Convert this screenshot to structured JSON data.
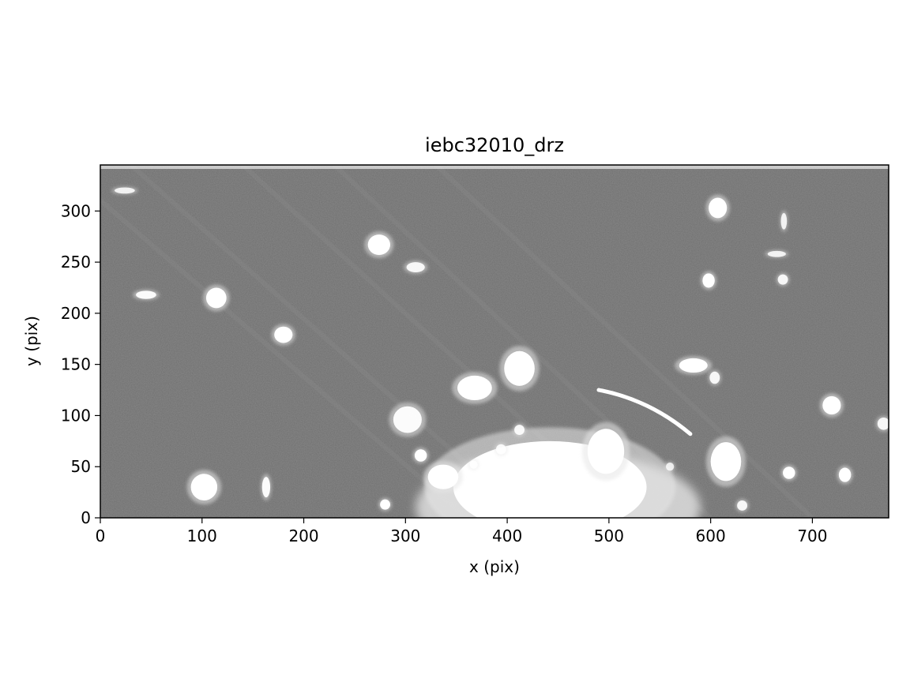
{
  "title": "iebc32010_drz",
  "chart_data": {
    "type": "heatmap",
    "title": "iebc32010_drz",
    "xlabel": "x (pix)",
    "ylabel": "y (pix)",
    "xlim": [
      0,
      775
    ],
    "ylim": [
      0,
      345
    ],
    "xticks": [
      0,
      100,
      200,
      300,
      400,
      500,
      600,
      700
    ],
    "yticks": [
      0,
      50,
      100,
      150,
      200,
      250,
      300
    ],
    "colormap": "gray",
    "grid": false,
    "background_color": "#6e6e6e",
    "sources": [
      {
        "x": 442,
        "y": 30,
        "rx": 95,
        "ry": 45,
        "peak": 1.0
      },
      {
        "x": 497,
        "y": 65,
        "rx": 18,
        "ry": 22,
        "peak": 1.0
      },
      {
        "x": 412,
        "y": 146,
        "rx": 15,
        "ry": 17,
        "peak": 1.0
      },
      {
        "x": 368,
        "y": 127,
        "rx": 17,
        "ry": 12,
        "peak": 1.0
      },
      {
        "x": 337,
        "y": 40,
        "rx": 15,
        "ry": 12,
        "peak": 1.0
      },
      {
        "x": 302,
        "y": 96,
        "rx": 14,
        "ry": 13,
        "peak": 0.95
      },
      {
        "x": 274,
        "y": 267,
        "rx": 11,
        "ry": 10,
        "peak": 1.0
      },
      {
        "x": 114,
        "y": 215,
        "rx": 10,
        "ry": 10,
        "peak": 1.0
      },
      {
        "x": 180,
        "y": 179,
        "rx": 9,
        "ry": 8,
        "peak": 1.0
      },
      {
        "x": 102,
        "y": 30,
        "rx": 13,
        "ry": 13,
        "peak": 1.0
      },
      {
        "x": 607,
        "y": 303,
        "rx": 9,
        "ry": 10,
        "peak": 1.0
      },
      {
        "x": 598,
        "y": 232,
        "rx": 6,
        "ry": 7,
        "peak": 1.0
      },
      {
        "x": 583,
        "y": 149,
        "rx": 14,
        "ry": 7,
        "peak": 1.0
      },
      {
        "x": 615,
        "y": 55,
        "rx": 15,
        "ry": 19,
        "peak": 1.0
      },
      {
        "x": 719,
        "y": 110,
        "rx": 9,
        "ry": 9,
        "peak": 1.0
      },
      {
        "x": 770,
        "y": 92,
        "rx": 6,
        "ry": 6,
        "peak": 0.9
      },
      {
        "x": 732,
        "y": 42,
        "rx": 6,
        "ry": 7,
        "peak": 1.0
      },
      {
        "x": 677,
        "y": 44,
        "rx": 6,
        "ry": 6,
        "peak": 1.0
      },
      {
        "x": 315,
        "y": 61,
        "rx": 6,
        "ry": 6,
        "peak": 1.0
      },
      {
        "x": 280,
        "y": 13,
        "rx": 5,
        "ry": 5,
        "peak": 1.0
      },
      {
        "x": 45,
        "y": 218,
        "rx": 10,
        "ry": 4,
        "peak": 0.95
      },
      {
        "x": 310,
        "y": 245,
        "rx": 9,
        "ry": 5,
        "peak": 0.9
      },
      {
        "x": 163,
        "y": 30,
        "rx": 4,
        "ry": 10,
        "peak": 0.95
      },
      {
        "x": 671,
        "y": 233,
        "rx": 5,
        "ry": 5,
        "peak": 0.9
      },
      {
        "x": 604,
        "y": 137,
        "rx": 5,
        "ry": 6,
        "peak": 0.9
      },
      {
        "x": 631,
        "y": 12,
        "rx": 5,
        "ry": 5,
        "peak": 0.9
      },
      {
        "x": 367,
        "y": 52,
        "rx": 4,
        "ry": 4,
        "peak": 0.9
      },
      {
        "x": 394,
        "y": 67,
        "rx": 5,
        "ry": 5,
        "peak": 0.9
      },
      {
        "x": 412,
        "y": 86,
        "rx": 5,
        "ry": 5,
        "peak": 0.9
      },
      {
        "x": 24,
        "y": 320,
        "rx": 10,
        "ry": 3,
        "peak": 0.85
      },
      {
        "x": 665,
        "y": 258,
        "rx": 9,
        "ry": 3,
        "peak": 0.85
      },
      {
        "x": 672,
        "y": 290,
        "rx": 3,
        "ry": 8,
        "peak": 0.85
      },
      {
        "x": 560,
        "y": 50,
        "rx": 4,
        "ry": 4,
        "peak": 0.8
      }
    ],
    "arc": {
      "x_start": 490,
      "y_start": 125,
      "x_end": 580,
      "y_end": 82,
      "peak": 1.0
    }
  },
  "axes": {
    "x_ticks": [
      "0",
      "100",
      "200",
      "300",
      "400",
      "500",
      "600",
      "700"
    ],
    "y_ticks": [
      "0",
      "50",
      "100",
      "150",
      "200",
      "250",
      "300"
    ],
    "xlabel": "x (pix)",
    "ylabel": "y (pix)"
  }
}
